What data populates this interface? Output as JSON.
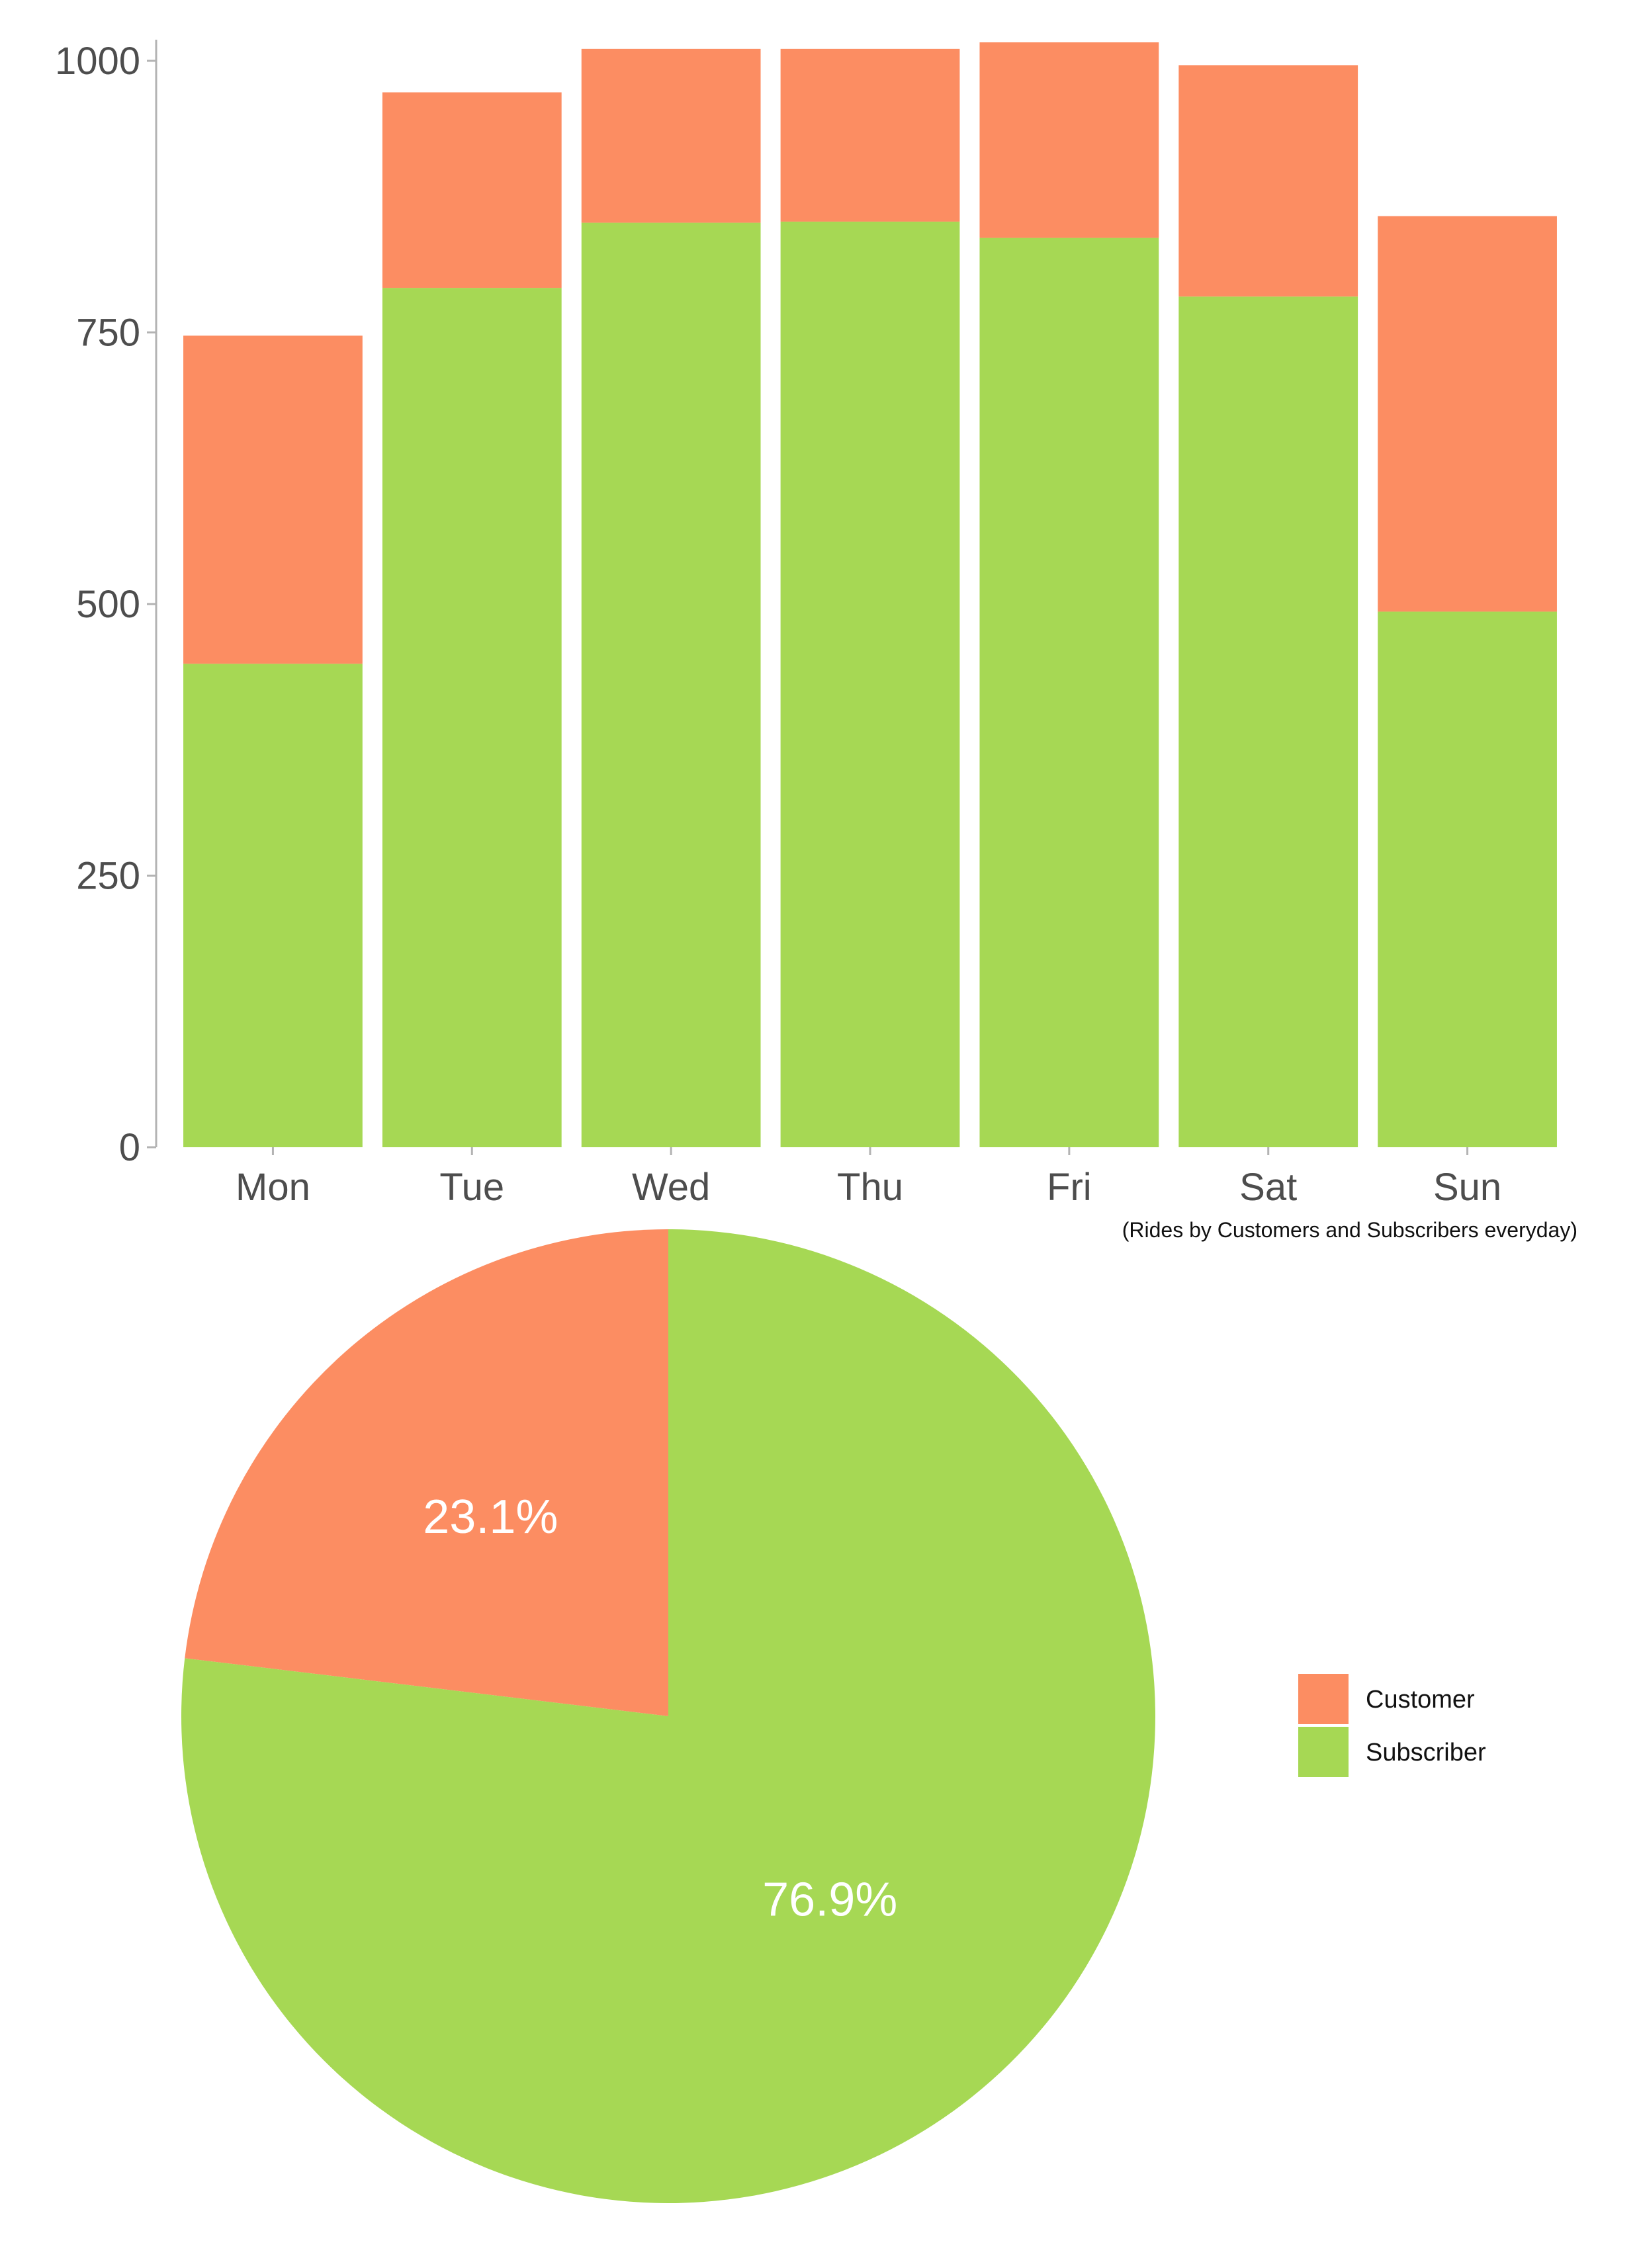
{
  "colors": {
    "customer": "#FC8D62",
    "subscriber": "#A6D854",
    "axis": "#b3b3b3",
    "tick_text": "#4d4d4d"
  },
  "chart_data": [
    {
      "type": "bar",
      "stacked": true,
      "categories": [
        "Mon",
        "Tue",
        "Wed",
        "Thu",
        "Fri",
        "Sat",
        "Sun"
      ],
      "series": [
        {
          "name": "Subscriber",
          "color": "#A6D854",
          "values": [
            445,
            791,
            851,
            852,
            837,
            783,
            493
          ]
        },
        {
          "name": "Customer",
          "color": "#FC8D62",
          "values": [
            302,
            180,
            160,
            159,
            180,
            213,
            364
          ]
        }
      ],
      "totals": [
        747,
        971,
        1011,
        1011,
        1017,
        996,
        857
      ],
      "yticks": [
        0,
        250,
        500,
        750,
        1000
      ],
      "ylim": [
        0,
        1017
      ],
      "grid": false,
      "caption": "(Rides by Customers and Subscribers everyday)"
    },
    {
      "type": "pie",
      "slices": [
        {
          "name": "Customer",
          "value": 23.1,
          "label": "23.1%",
          "color": "#FC8D62"
        },
        {
          "name": "Subscriber",
          "value": 76.9,
          "label": "76.9%",
          "color": "#A6D854"
        }
      ],
      "legend": {
        "position": "right",
        "entries": [
          {
            "label": "Customer",
            "color": "#FC8D62"
          },
          {
            "label": "Subscriber",
            "color": "#A6D854"
          }
        ]
      }
    }
  ]
}
